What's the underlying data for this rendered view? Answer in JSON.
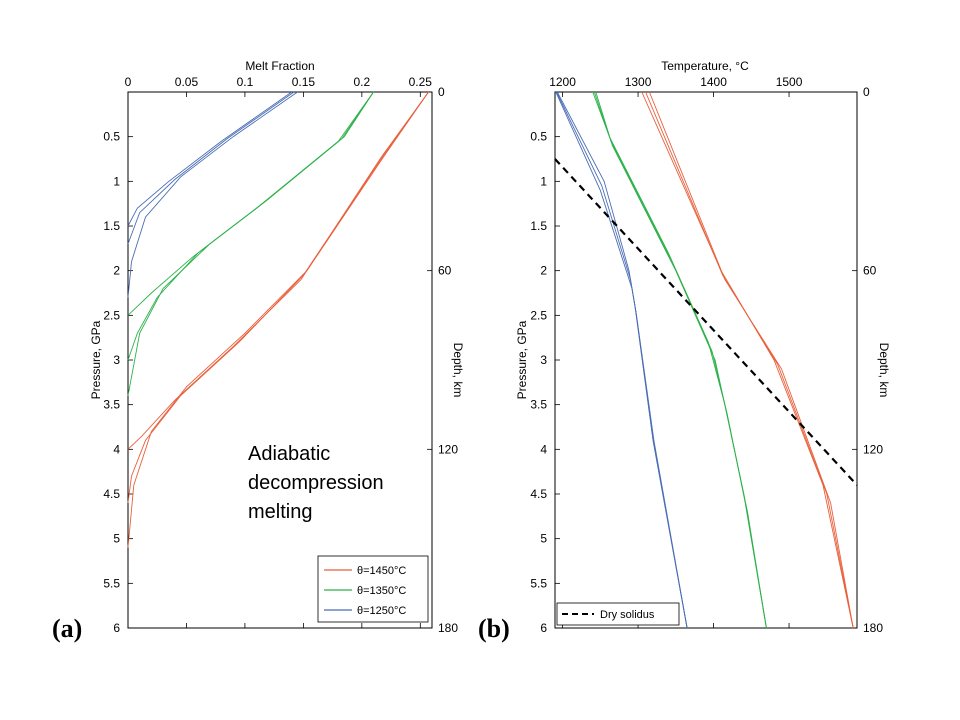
{
  "chart_data": [
    {
      "panel_label": "(a)",
      "type": "line",
      "xlabel": "Melt Fraction",
      "ylabel": "Pressure, GPa",
      "y2label": "Depth, km",
      "xlim": [
        0,
        0.26
      ],
      "ylim": [
        0,
        6
      ],
      "y2lim": [
        0,
        180
      ],
      "x_ticks": [
        "0",
        "0.05",
        "0.1",
        "0.15",
        "0.2",
        "0.25"
      ],
      "x_tick_values": [
        0,
        0.05,
        0.1,
        0.15,
        0.2,
        0.25
      ],
      "y_ticks": [
        "0.5",
        "1",
        "1.5",
        "2",
        "2.5",
        "3",
        "3.5",
        "4",
        "4.5",
        "5",
        "5.5",
        "6"
      ],
      "y_tick_values": [
        0.5,
        1,
        1.5,
        2,
        2.5,
        3,
        3.5,
        4,
        4.5,
        5,
        5.5,
        6
      ],
      "y2_ticks": [
        "0",
        "60",
        "120",
        "180"
      ],
      "y2_tick_values": [
        0,
        60,
        120,
        180
      ],
      "annotation": [
        "Adiabatic",
        "decompression",
        "melting"
      ],
      "legend_position": "bottom-right",
      "series": [
        {
          "name": "θ=1450°C",
          "color": "#e8603c",
          "variants": [
            [
              [
                0.257,
                0
              ],
              [
                0.22,
                0.7
              ],
              [
                0.153,
                2.0
              ],
              [
                0.1,
                2.7
              ],
              [
                0.05,
                3.3
              ],
              [
                0.02,
                3.8
              ],
              [
                0.005,
                4.4
              ],
              [
                0,
                5.1
              ]
            ],
            [
              [
                0.257,
                0
              ],
              [
                0.218,
                0.72
              ],
              [
                0.15,
                2.05
              ],
              [
                0.095,
                2.8
              ],
              [
                0.045,
                3.4
              ],
              [
                0.015,
                3.9
              ],
              [
                0.003,
                4.3
              ],
              [
                0,
                4.6
              ]
            ],
            [
              [
                0.257,
                0
              ],
              [
                0.216,
                0.74
              ],
              [
                0.148,
                2.1
              ],
              [
                0.09,
                2.85
              ],
              [
                0.04,
                3.45
              ],
              [
                0.012,
                3.85
              ],
              [
                0,
                4.0
              ]
            ]
          ]
        },
        {
          "name": "θ=1350°C",
          "color": "#2db14a",
          "variants": [
            [
              [
                0.21,
                0
              ],
              [
                0.185,
                0.5
              ],
              [
                0.12,
                1.2
              ],
              [
                0.07,
                1.7
              ],
              [
                0.03,
                2.2
              ],
              [
                0.01,
                2.7
              ],
              [
                0,
                3.4
              ]
            ],
            [
              [
                0.21,
                0
              ],
              [
                0.183,
                0.52
              ],
              [
                0.115,
                1.25
              ],
              [
                0.06,
                1.8
              ],
              [
                0.025,
                2.3
              ],
              [
                0.008,
                2.7
              ],
              [
                0,
                3.0
              ]
            ],
            [
              [
                0.21,
                0
              ],
              [
                0.18,
                0.55
              ],
              [
                0.11,
                1.3
              ],
              [
                0.055,
                1.85
              ],
              [
                0.02,
                2.25
              ],
              [
                0,
                2.5
              ]
            ]
          ]
        },
        {
          "name": "θ=1250°C",
          "color": "#4a6db5",
          "variants": [
            [
              [
                0.145,
                0
              ],
              [
                0.09,
                0.5
              ],
              [
                0.045,
                0.95
              ],
              [
                0.015,
                1.4
              ],
              [
                0.003,
                1.9
              ],
              [
                0,
                2.3
              ]
            ],
            [
              [
                0.142,
                0
              ],
              [
                0.085,
                0.52
              ],
              [
                0.04,
                0.98
              ],
              [
                0.01,
                1.35
              ],
              [
                0,
                1.7
              ]
            ],
            [
              [
                0.14,
                0
              ],
              [
                0.08,
                0.55
              ],
              [
                0.035,
                1.0
              ],
              [
                0.008,
                1.3
              ],
              [
                0,
                1.5
              ]
            ]
          ]
        }
      ]
    },
    {
      "panel_label": "(b)",
      "type": "line",
      "xlabel": "Temperature, °C",
      "ylabel": "Pressure, GPa",
      "y2label": "Depth, km",
      "xlim": [
        1190,
        1590
      ],
      "ylim": [
        0,
        6
      ],
      "y2lim": [
        0,
        180
      ],
      "x_ticks": [
        "1200",
        "1300",
        "1400",
        "1500"
      ],
      "x_tick_values": [
        1200,
        1300,
        1400,
        1500
      ],
      "y_ticks": [
        "0.5",
        "1",
        "1.5",
        "2",
        "2.5",
        "3",
        "3.5",
        "4",
        "4.5",
        "5",
        "5.5",
        "6"
      ],
      "y_tick_values": [
        0.5,
        1,
        1.5,
        2,
        2.5,
        3,
        3.5,
        4,
        4.5,
        5,
        5.5,
        6
      ],
      "y2_ticks": [
        "0",
        "60",
        "120",
        "180"
      ],
      "y2_tick_values": [
        0,
        60,
        120,
        180
      ],
      "legend": [
        "Dry solidus"
      ],
      "legend_position": "bottom-left",
      "dry_solidus": [
        [
          1190,
          0.75
        ],
        [
          1590,
          4.4
        ]
      ],
      "series": [
        {
          "name": "θ=1450°C",
          "color": "#e8603c",
          "variants": [
            [
              [
                1305,
                0
              ],
              [
                1410,
                2.0
              ],
              [
                1480,
                3.0
              ],
              [
                1545,
                4.4
              ],
              [
                1585,
                6.0
              ]
            ],
            [
              [
                1310,
                0
              ],
              [
                1412,
                2.05
              ],
              [
                1485,
                3.05
              ],
              [
                1550,
                4.5
              ],
              [
                1585,
                6.0
              ]
            ],
            [
              [
                1315,
                0
              ],
              [
                1415,
                2.1
              ],
              [
                1490,
                3.1
              ],
              [
                1555,
                4.6
              ],
              [
                1585,
                6.0
              ]
            ]
          ]
        },
        {
          "name": "θ=1350°C",
          "color": "#2db14a",
          "variants": [
            [
              [
                1240,
                0
              ],
              [
                1262,
                0.5
              ],
              [
                1340,
                1.8
              ],
              [
                1393,
                2.8
              ],
              [
                1415,
                3.5
              ],
              [
                1440,
                4.5
              ],
              [
                1470,
                6.0
              ]
            ],
            [
              [
                1242,
                0
              ],
              [
                1264,
                0.55
              ],
              [
                1345,
                1.9
              ],
              [
                1398,
                2.9
              ],
              [
                1418,
                3.6
              ],
              [
                1442,
                4.6
              ],
              [
                1470,
                6.0
              ]
            ],
            [
              [
                1244,
                0
              ],
              [
                1266,
                0.6
              ],
              [
                1350,
                2.0
              ],
              [
                1402,
                3.0
              ],
              [
                1420,
                3.7
              ],
              [
                1445,
                4.7
              ],
              [
                1470,
                6.0
              ]
            ]
          ]
        },
        {
          "name": "θ=1250°C",
          "color": "#4a6db5",
          "variants": [
            [
              [
                1193,
                0
              ],
              [
                1255,
                1.0
              ],
              [
                1288,
                2.0
              ],
              [
                1296,
                2.4
              ],
              [
                1320,
                3.9
              ],
              [
                1365,
                6.0
              ]
            ],
            [
              [
                1192,
                0
              ],
              [
                1252,
                1.05
              ],
              [
                1290,
                2.1
              ],
              [
                1297,
                2.45
              ],
              [
                1320,
                3.9
              ],
              [
                1365,
                6.0
              ]
            ],
            [
              [
                1191,
                0
              ],
              [
                1250,
                1.1
              ],
              [
                1292,
                2.2
              ],
              [
                1298,
                2.5
              ],
              [
                1321,
                3.9
              ],
              [
                1365,
                6.0
              ]
            ]
          ]
        }
      ]
    }
  ]
}
